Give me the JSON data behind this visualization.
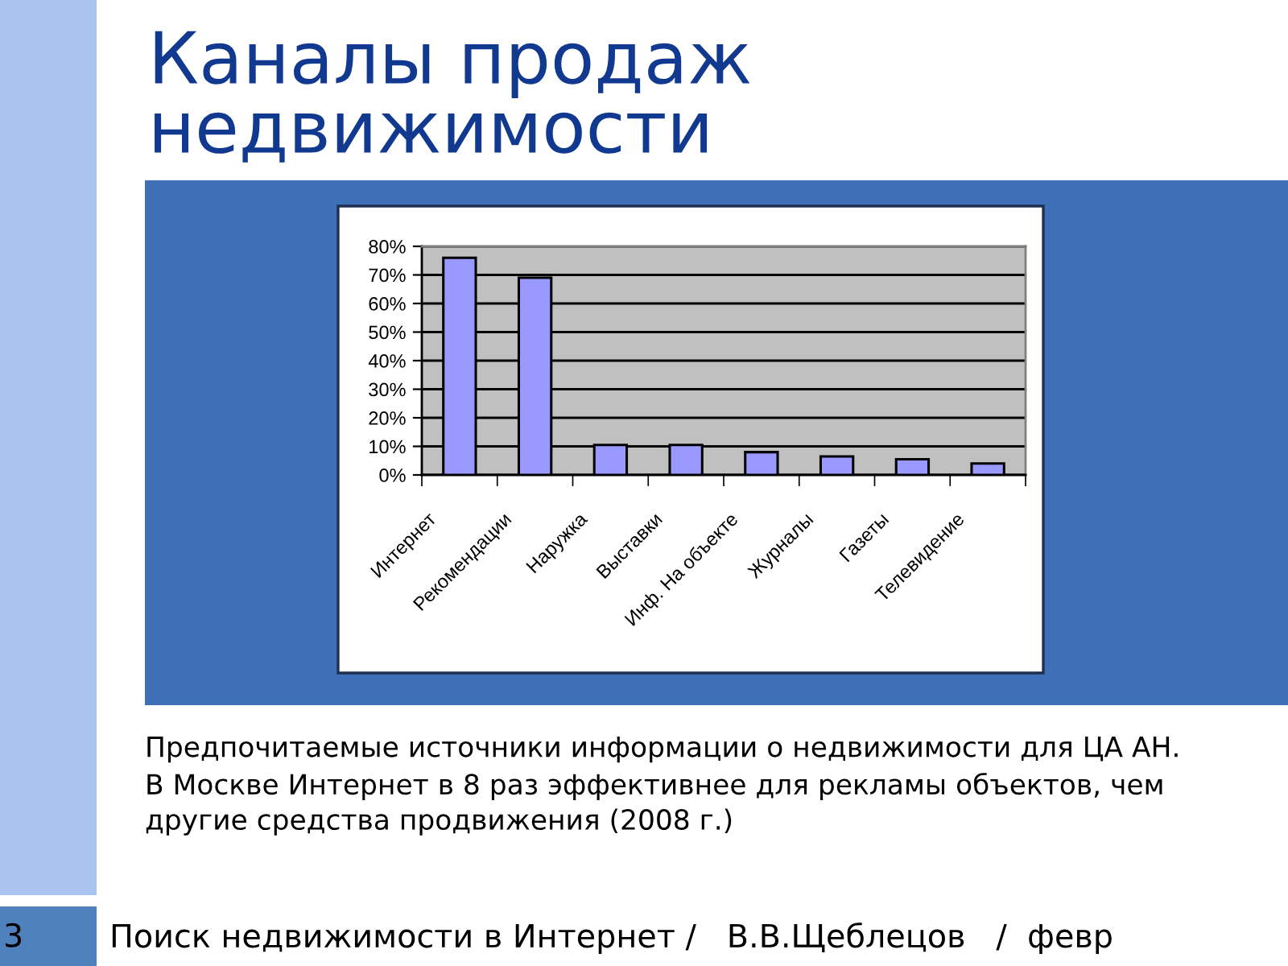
{
  "chart_data": {
    "type": "bar",
    "title": "Каналы продаж\nнедвижимости",
    "categories": [
      "Интернет",
      "Рекомендации",
      "Наружка",
      "Выставки",
      "Инф. На объекте",
      "Журналы",
      "Газеты",
      "Телевидение"
    ],
    "values": [
      76,
      69,
      10.5,
      10.5,
      8,
      6.5,
      5.5,
      4
    ],
    "color": "#9999ff",
    "ylim": [
      0,
      80
    ],
    "yticks": [
      {
        "value": 0,
        "label": "0%"
      },
      {
        "value": 10,
        "label": "10%"
      },
      {
        "value": 20,
        "label": "20%"
      },
      {
        "value": 30,
        "label": "30%"
      },
      {
        "value": 40,
        "label": "40%"
      },
      {
        "value": 50,
        "label": "50%"
      },
      {
        "value": 60,
        "label": "60%"
      },
      {
        "value": 70,
        "label": "70%"
      },
      {
        "value": 80,
        "label": "80%"
      }
    ],
    "grid": "y",
    "annotations": [
      "Предпочитаемые источники информации о недвижимости для ЦА АН.",
      "В Москве Интернет в 8 раз эффективнее для рекламы объектов, чем\nдругие средства продвижения (2008 г.)",
      "Поиск недвижимости в Интернет /   В.В.Щеблецов   /  февр",
      "3"
    ]
  }
}
